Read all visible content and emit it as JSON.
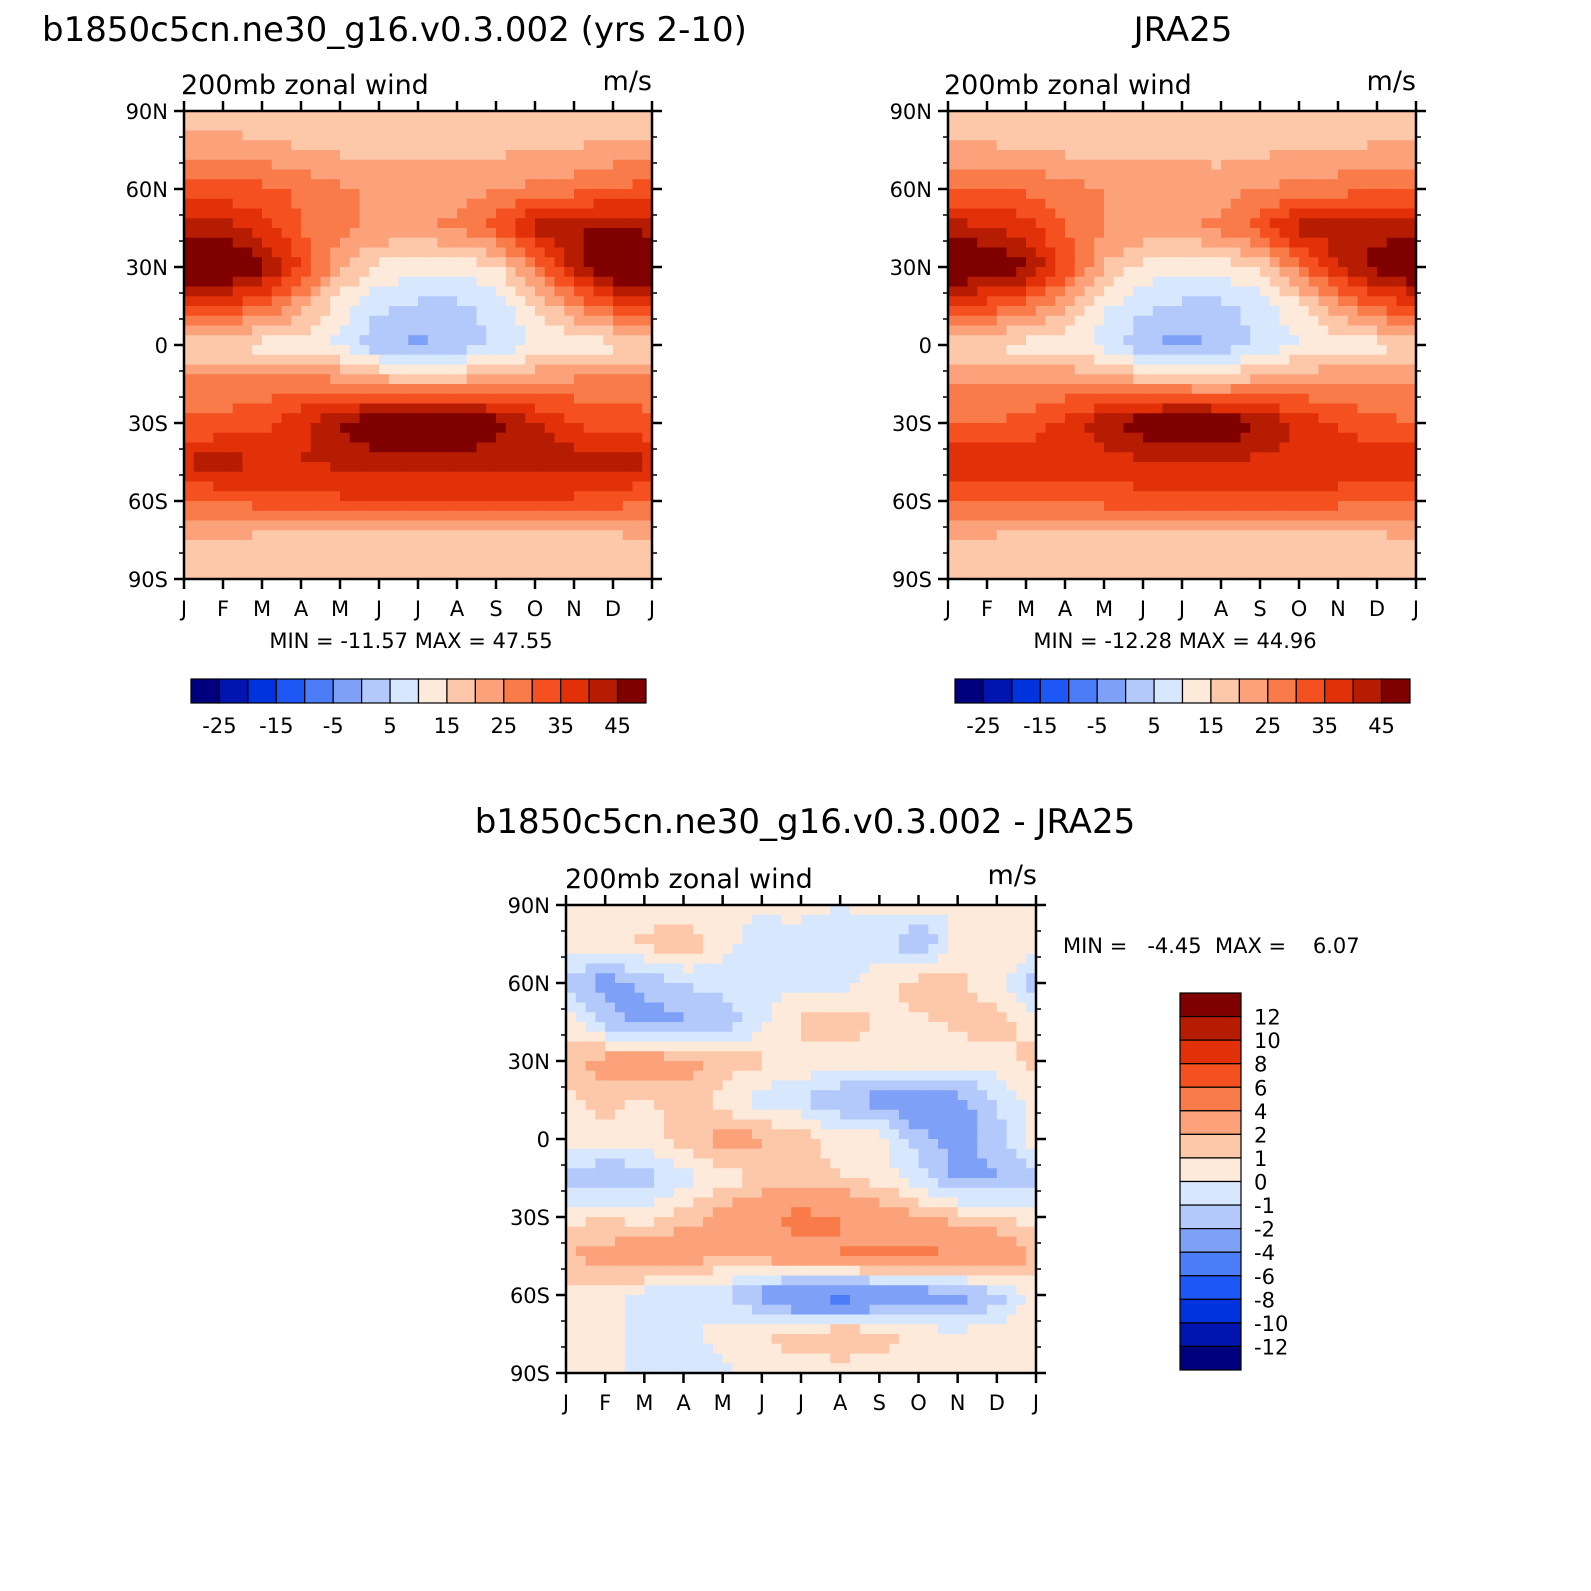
{
  "months": [
    "J",
    "F",
    "M",
    "A",
    "M",
    "J",
    "J",
    "A",
    "S",
    "O",
    "N",
    "D",
    "J"
  ],
  "lat_labels": [
    "90N",
    "60N",
    "30N",
    "0",
    "30S",
    "60S",
    "90S"
  ],
  "long_name": "200mb zonal wind",
  "units": "m/s",
  "top_left": {
    "title": "b1850c5cn.ne30_g16.v0.3.002 (yrs 2-10)",
    "stats": "MIN = -11.57 MAX =  47.55"
  },
  "top_right": {
    "title": "JRA25",
    "stats": "MIN = -12.28 MAX =  44.96"
  },
  "bottom": {
    "title": "b1850c5cn.ne30_g16.v0.3.002 - JRA25",
    "stats": "MIN =   -4.45  MAX =    6.07"
  },
  "colorbar_top": {
    "colors": [
      "#00007f",
      "#0015b0",
      "#0033dd",
      "#1d57f5",
      "#4a7df7",
      "#7ea0f6",
      "#b3c9fb",
      "#d7e7fd",
      "#feeadb",
      "#fdc8aa",
      "#fba27a",
      "#f97b4a",
      "#f5501f",
      "#e23009",
      "#b51c02",
      "#800000"
    ],
    "labels": [
      "-25",
      "-15",
      "-5",
      "5",
      "15",
      "25",
      "35",
      "45"
    ]
  },
  "colorbar_diff": {
    "colors": [
      "#800000",
      "#b51c02",
      "#e23009",
      "#f5501f",
      "#f97b4a",
      "#fba27a",
      "#fdc8aa",
      "#feeadb",
      "#d7e7fd",
      "#b3c9fb",
      "#7ea0f6",
      "#4a7df7",
      "#1d57f5",
      "#0033dd",
      "#0015b0",
      "#00007f"
    ],
    "labels": [
      "12",
      "10",
      "8",
      "6",
      "4",
      "2",
      "1",
      "0",
      "-1",
      "-2",
      "-4",
      "-6",
      "-8",
      "-10",
      "-12"
    ]
  },
  "chart_data": [
    {
      "type": "heatmap",
      "title": "b1850c5cn.ne30_g16.v0.3.002 (yrs 2-10)",
      "subtitle": "200mb zonal wind",
      "units": "m/s",
      "xlabel": "",
      "ylabel": "",
      "x": [
        "J",
        "F",
        "M",
        "A",
        "M",
        "J",
        "J",
        "A",
        "S",
        "O",
        "N",
        "D",
        "J"
      ],
      "y": [
        90,
        75,
        60,
        45,
        30,
        15,
        0,
        -15,
        -30,
        -45,
        -60,
        -75,
        -90
      ],
      "z": [
        [
          5,
          5,
          5,
          5,
          5,
          5,
          5,
          5,
          5,
          5,
          5,
          5,
          5
        ],
        [
          13,
          14,
          12,
          10,
          9,
          8,
          9,
          8,
          9,
          10,
          10,
          12,
          13
        ],
        [
          22,
          22,
          21,
          19,
          16,
          14,
          14,
          13,
          15,
          16,
          18,
          20,
          22
        ],
        [
          33,
          32,
          27,
          20,
          16,
          14,
          14,
          16,
          22,
          32,
          35,
          36,
          33
        ],
        [
          46,
          44,
          37,
          25,
          12,
          4,
          1,
          2,
          4,
          17,
          32,
          42,
          46
        ],
        [
          27,
          25,
          20,
          12,
          2,
          -4,
          -6,
          -6,
          -3,
          5,
          15,
          23,
          27
        ],
        [
          5,
          4,
          3,
          2,
          -1,
          -9,
          -11,
          -9,
          -4,
          0,
          1,
          3,
          5
        ],
        [
          18,
          18,
          18,
          18,
          17,
          13,
          12,
          12,
          14,
          16,
          17,
          18,
          18
        ],
        [
          21,
          21,
          22,
          29,
          35,
          42,
          47,
          44,
          38,
          31,
          25,
          22,
          21
        ],
        [
          31,
          32,
          30,
          30,
          31,
          32,
          32,
          31,
          31,
          32,
          33,
          32,
          31
        ],
        [
          20,
          21,
          22,
          23,
          24,
          25,
          25,
          25,
          25,
          25,
          24,
          22,
          20
        ],
        [
          10,
          9,
          8,
          6,
          5,
          5,
          5,
          5,
          5,
          5,
          6,
          8,
          10
        ],
        [
          5,
          5,
          5,
          5,
          5,
          5,
          5,
          5,
          5,
          5,
          5,
          5,
          5
        ]
      ],
      "levels": [
        -35,
        -30,
        -25,
        -20,
        -15,
        -10,
        -5,
        0,
        5,
        10,
        15,
        20,
        25,
        30,
        35,
        40,
        45
      ]
    },
    {
      "type": "heatmap",
      "title": "JRA25",
      "subtitle": "200mb zonal wind",
      "units": "m/s",
      "xlabel": "",
      "ylabel": "",
      "x": [
        "J",
        "F",
        "M",
        "A",
        "M",
        "J",
        "J",
        "A",
        "S",
        "O",
        "N",
        "D",
        "J"
      ],
      "y": [
        90,
        75,
        60,
        45,
        30,
        15,
        0,
        -15,
        -30,
        -45,
        -60,
        -75,
        -90
      ],
      "z": [
        [
          5,
          5,
          5,
          5,
          5,
          5,
          5,
          5,
          5,
          5,
          5,
          5,
          5
        ],
        [
          11,
          11,
          10,
          9,
          8,
          8,
          8,
          8,
          9,
          10,
          10,
          11,
          11
        ],
        [
          20,
          20,
          19,
          17,
          15,
          14,
          14,
          13,
          15,
          17,
          18,
          19,
          20
        ],
        [
          32,
          31,
          27,
          20,
          15,
          14,
          14,
          16,
          23,
          32,
          33,
          33,
          32
        ],
        [
          42,
          41,
          36,
          24,
          10,
          3,
          1,
          2,
          5,
          18,
          30,
          38,
          42
        ],
        [
          25,
          23,
          19,
          10,
          1,
          -4,
          -6,
          -6,
          -3,
          4,
          14,
          21,
          25
        ],
        [
          5,
          4,
          3,
          2,
          -2,
          -9,
          -12,
          -9,
          -4,
          0,
          1,
          3,
          5
        ],
        [
          16,
          16,
          16,
          16,
          15,
          12,
          11,
          11,
          13,
          15,
          16,
          16,
          16
        ],
        [
          20,
          20,
          21,
          27,
          33,
          39,
          44,
          41,
          35,
          29,
          24,
          21,
          20
        ],
        [
          29,
          29,
          28,
          28,
          28,
          29,
          29,
          29,
          29,
          29,
          30,
          29,
          29
        ],
        [
          19,
          19,
          20,
          21,
          22,
          23,
          23,
          23,
          23,
          23,
          22,
          20,
          19
        ],
        [
          10,
          9,
          8,
          7,
          6,
          6,
          6,
          6,
          6,
          6,
          7,
          8,
          10
        ],
        [
          5,
          5,
          5,
          5,
          5,
          5,
          5,
          5,
          5,
          5,
          5,
          5,
          5
        ]
      ],
      "levels": [
        -35,
        -30,
        -25,
        -20,
        -15,
        -10,
        -5,
        0,
        5,
        10,
        15,
        20,
        25,
        30,
        35,
        40,
        45
      ]
    },
    {
      "type": "heatmap",
      "title": "b1850c5cn.ne30_g16.v0.3.002 - JRA25",
      "subtitle": "200mb zonal wind",
      "units": "m/s",
      "xlabel": "",
      "ylabel": "",
      "x": [
        "J",
        "F",
        "M",
        "A",
        "M",
        "J",
        "J",
        "A",
        "S",
        "O",
        "N",
        "D",
        "J"
      ],
      "y": [
        90,
        75,
        60,
        45,
        30,
        15,
        0,
        -15,
        -30,
        -45,
        -60,
        -75,
        -90
      ],
      "z": [
        [
          0.5,
          0.5,
          0.5,
          0.3,
          0.3,
          0.2,
          0.2,
          0.1,
          0.2,
          0.3,
          0.3,
          0.5,
          0.5
        ],
        [
          0.5,
          0.6,
          1.2,
          1.8,
          0.4,
          -0.5,
          -0.2,
          -1.2,
          -0.3,
          -2.2,
          0.4,
          0.8,
          0.5
        ],
        [
          -1.5,
          -2.5,
          -1.8,
          -1.0,
          -0.5,
          -0.5,
          -0.3,
          -0.5,
          0.5,
          1.5,
          1.2,
          0.5,
          -1.5
        ],
        [
          0.5,
          -1.5,
          -2.5,
          -2.2,
          -1.8,
          -0.3,
          1.2,
          1.5,
          1.0,
          0.8,
          1.2,
          1.5,
          0.5
        ],
        [
          1.5,
          2.5,
          2.8,
          2.5,
          1.5,
          1.2,
          0.8,
          0.5,
          0.5,
          0.5,
          0.5,
          0.5,
          1.5
        ],
        [
          0.5,
          1.5,
          0.8,
          1.5,
          0.5,
          -0.5,
          -1.0,
          -2.0,
          -2.5,
          -3.5,
          -2.5,
          -1.0,
          0.5
        ],
        [
          0.5,
          0.5,
          0.5,
          1.5,
          2.5,
          2.2,
          1.5,
          0.5,
          0.5,
          -1.5,
          -2.5,
          -1.5,
          0.5
        ],
        [
          -1.2,
          -2.2,
          -1.5,
          -0.5,
          0.5,
          1.0,
          1.5,
          1.0,
          0.5,
          -0.5,
          -2.5,
          -2.0,
          -1.2
        ],
        [
          0.5,
          1.0,
          0.5,
          1.5,
          2.5,
          3.5,
          4.5,
          4.0,
          3.0,
          2.0,
          1.5,
          1.0,
          0.5
        ],
        [
          2.0,
          2.5,
          3.5,
          3.0,
          2.0,
          2.5,
          3.5,
          4.0,
          4.5,
          4.5,
          4.0,
          3.5,
          2.0
        ],
        [
          0.5,
          0.5,
          -0.5,
          -0.5,
          -1.0,
          -2.5,
          -4.5,
          -5.0,
          -4.0,
          -3.0,
          -2.5,
          -1.5,
          0.5
        ],
        [
          1.0,
          0.5,
          -0.5,
          -0.5,
          0.5,
          1.0,
          1.5,
          2.0,
          1.5,
          0.5,
          0.3,
          0.5,
          1.0
        ],
        [
          0.5,
          0.5,
          -0.5,
          -0.5,
          -0.3,
          0.5,
          0.5,
          0.5,
          0.5,
          0.3,
          0.3,
          0.5,
          0.5
        ]
      ],
      "levels": [
        -12,
        -10,
        -8,
        -6,
        -4,
        -2,
        -1,
        0,
        1,
        2,
        4,
        6,
        8,
        10,
        12
      ]
    }
  ]
}
